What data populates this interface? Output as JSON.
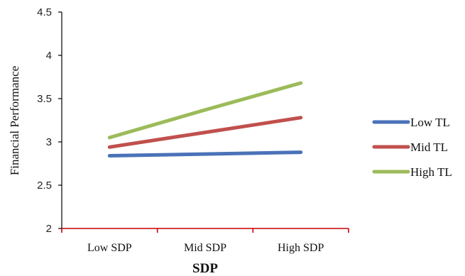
{
  "chart_data": {
    "type": "line",
    "categories": [
      "Low SDP",
      "Mid SDP",
      "High SDP"
    ],
    "series": [
      {
        "name": "Low TL",
        "values": [
          2.84,
          2.86,
          2.88
        ],
        "color": "#4a72b8"
      },
      {
        "name": "Mid TL",
        "values": [
          2.94,
          3.11,
          3.28
        ],
        "color": "#c0504d"
      },
      {
        "name": "High TL",
        "values": [
          3.05,
          3.37,
          3.68
        ],
        "color": "#9bbb59"
      }
    ],
    "xlabel": "SDP",
    "ylabel": "Financial Performance",
    "ylim": [
      2,
      4.5
    ],
    "yticks": [
      "2",
      "2.5",
      "3",
      "3.5",
      "4",
      "4.5"
    ],
    "grid": false,
    "legend_position": "right",
    "axis_color_x": "#cc0000",
    "axis_color_y": "#000000"
  }
}
